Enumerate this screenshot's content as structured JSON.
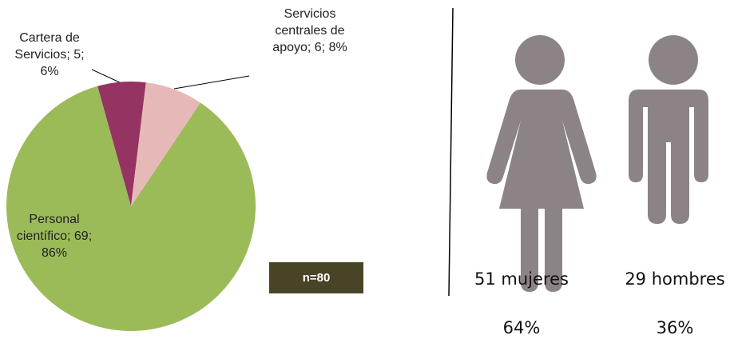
{
  "chart_data": {
    "type": "pie",
    "values": [
      5,
      6,
      69
    ],
    "value_labels": [
      "Cartera de Servicios; 5; 6%",
      "Servicios centrales de apoyo; 6; 8%",
      "Personal científico; 69; 86%"
    ],
    "colors": [
      "#953463",
      "#e6b9b8",
      "#9bbb59"
    ],
    "annotation": "n=80"
  },
  "people": [
    {
      "label": "51 mujeres",
      "percent": "64%"
    },
    {
      "label": "29 hombres",
      "percent": "36%"
    }
  ]
}
